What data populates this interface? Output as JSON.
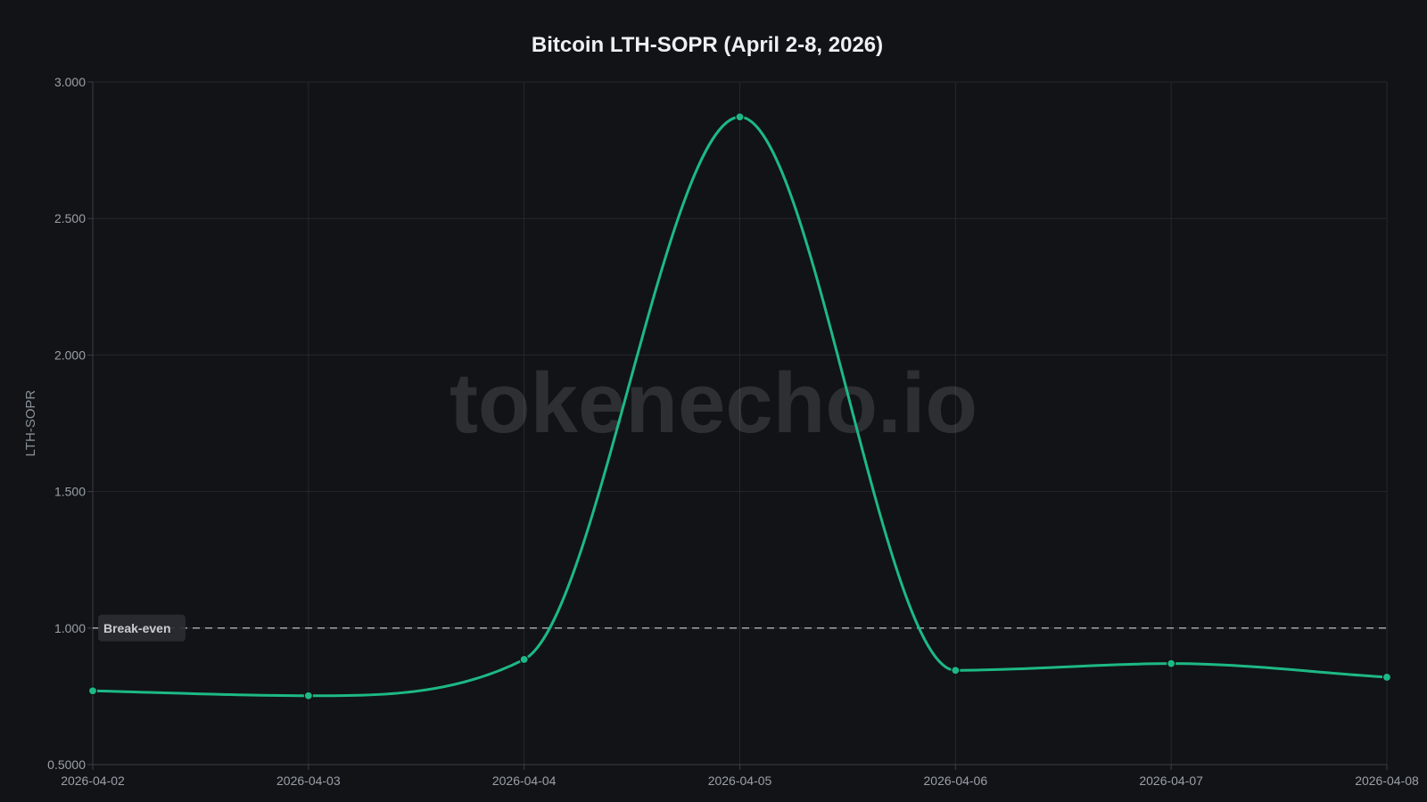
{
  "chart_data": {
    "type": "line",
    "title": "Bitcoin LTH-SOPR (April 2-8, 2026)",
    "xlabel": "",
    "ylabel": "LTH-SOPR",
    "ylim": [
      0.5,
      3.0
    ],
    "yticks": [
      "0.5000",
      "1.000",
      "1.500",
      "2.000",
      "2.500",
      "3.000"
    ],
    "x": [
      "2026-04-02",
      "2026-04-03",
      "2026-04-04",
      "2026-04-05",
      "2026-04-06",
      "2026-04-07",
      "2026-04-08"
    ],
    "series": [
      {
        "values": [
          0.77,
          0.752,
          0.885,
          2.872,
          0.845,
          0.87,
          0.82
        ],
        "color": "#1db984"
      }
    ],
    "reference_line": {
      "y": 1.0,
      "label": "Break-even",
      "style": "dashed",
      "color": "#c8ccd2"
    },
    "grid": true,
    "legend": "none",
    "watermark": "tokenecho.io"
  },
  "colors": {
    "background": "#111317",
    "grid": "#24272d",
    "axis": "#3a3e45",
    "series": "#1db984"
  }
}
